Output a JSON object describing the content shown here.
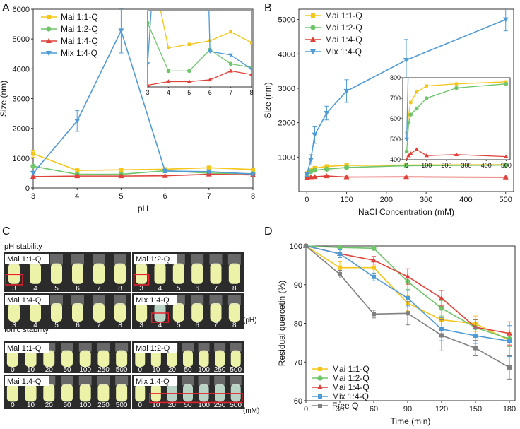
{
  "colors": {
    "mai11": "#f5c518",
    "mai12": "#6fc56a",
    "mai14": "#e0413a",
    "mix14": "#4f9bd6",
    "freeq": "#808080",
    "axis": "#333333",
    "photo_bg": "#2b2b2b",
    "tube_fill": "#ecf2a8",
    "tube_turbid": "#b9d4c4",
    "highlight": "#e8232f"
  },
  "chart_data": [
    {
      "panel": "A",
      "type": "line",
      "title": "",
      "xlabel": "pH",
      "ylabel": "Size (nm)",
      "x": [
        3,
        4,
        5,
        6,
        7,
        8
      ],
      "xlim": [
        3,
        8
      ],
      "ylim": [
        0,
        6000
      ],
      "xticks": [
        "3",
        "4",
        "5",
        "6",
        "7",
        "8"
      ],
      "yticks": [
        "0",
        "1000",
        "2000",
        "3000",
        "4000",
        "5000",
        "6000"
      ],
      "legend_position": "top-left",
      "series": [
        {
          "name": "Mai 1:1-Q",
          "key": "mai11",
          "marker": "square",
          "values": [
            1150,
            590,
            610,
            630,
            680,
            620
          ],
          "errors": [
            120,
            40,
            40,
            40,
            40,
            40
          ]
        },
        {
          "name": "Mai 1:2-Q",
          "key": "mai12",
          "marker": "circle",
          "values": [
            730,
            460,
            460,
            580,
            500,
            480
          ],
          "errors": [
            40,
            30,
            30,
            30,
            30,
            30
          ]
        },
        {
          "name": "Mai 1:4-Q",
          "key": "mai14",
          "marker": "triangle-up",
          "values": [
            380,
            400,
            400,
            410,
            460,
            440
          ],
          "errors": [
            20,
            20,
            20,
            20,
            20,
            20
          ]
        },
        {
          "name": "Mix 1:4-Q",
          "key": "mix14",
          "marker": "triangle-down",
          "values": [
            500,
            2250,
            5280,
            570,
            550,
            470
          ],
          "errors": [
            60,
            350,
            750,
            60,
            40,
            40
          ]
        }
      ],
      "inset": {
        "xlim": [
          3,
          8
        ],
        "ylim": [
          370,
          800
        ],
        "xticks": [
          "3",
          "4",
          "5",
          "6",
          "7",
          "8"
        ]
      }
    },
    {
      "panel": "B",
      "type": "line",
      "title": "",
      "xlabel": "NaCl Concentration (mM)",
      "ylabel": "Size (nm)",
      "x": [
        0,
        10,
        20,
        50,
        100,
        250,
        500
      ],
      "xlim": [
        -20,
        520
      ],
      "ylim": [
        0,
        5300
      ],
      "xticks": [
        "0",
        "100",
        "200",
        "300",
        "400",
        "500"
      ],
      "yticks": [
        "1000",
        "2000",
        "3000",
        "4000",
        "5000"
      ],
      "legend_position": "top-left",
      "series": [
        {
          "name": "Mai 1:1-Q",
          "key": "mai11",
          "marker": "square",
          "values": [
            530,
            620,
            680,
            730,
            760,
            770,
            780
          ],
          "errors": [
            20,
            20,
            20,
            20,
            20,
            20,
            20
          ]
        },
        {
          "name": "Mai 1:2-Q",
          "key": "mai12",
          "marker": "circle",
          "values": [
            440,
            580,
            620,
            650,
            700,
            750,
            770
          ],
          "errors": [
            20,
            20,
            20,
            20,
            20,
            20,
            20
          ]
        },
        {
          "name": "Mai 1:4-Q",
          "key": "mai14",
          "marker": "triangle-up",
          "values": [
            400,
            420,
            430,
            450,
            420,
            425,
            415
          ],
          "errors": [
            10,
            10,
            10,
            10,
            10,
            10,
            10
          ]
        },
        {
          "name": "Mix 1:4-Q",
          "key": "mix14",
          "marker": "triangle-down",
          "values": [
            500,
            920,
            1650,
            2280,
            2920,
            3820,
            5000
          ],
          "errors": [
            60,
            150,
            250,
            200,
            330,
            600,
            330
          ]
        }
      ],
      "inset": {
        "xlim": [
          -20,
          520
        ],
        "ylim": [
          400,
          800
        ],
        "xticks": [
          "0",
          "100",
          "200",
          "300",
          "400",
          "500"
        ],
        "yticks": [
          "400",
          "500",
          "600",
          "700",
          "800"
        ]
      }
    },
    {
      "panel": "D",
      "type": "line",
      "title": "",
      "xlabel": "Time (min)",
      "ylabel": "Residual quercetin (%)",
      "x": [
        0,
        30,
        60,
        90,
        120,
        150,
        180
      ],
      "xlim": [
        0,
        185
      ],
      "ylim": [
        60,
        100
      ],
      "xticks": [
        "0",
        "30",
        "60",
        "90",
        "120",
        "150",
        "180"
      ],
      "yticks": [
        "60",
        "70",
        "80",
        "90",
        "100"
      ],
      "legend_position": "bottom-left",
      "series": [
        {
          "name": "Mai 1:1-Q",
          "key": "mai11",
          "marker": "square",
          "values": [
            100,
            94.4,
            94.4,
            85.2,
            80.9,
            79.9,
            75.6
          ],
          "errors": [
            0,
            1.5,
            1.5,
            2,
            2,
            2,
            2
          ]
        },
        {
          "name": "Mai 1:2-Q",
          "key": "mai12",
          "marker": "circle",
          "values": [
            100,
            99.6,
            99.4,
            90.8,
            83.9,
            78.9,
            76.0
          ],
          "errors": [
            0,
            0.5,
            0.5,
            2,
            2,
            2,
            2
          ]
        },
        {
          "name": "Mai 1:4-Q",
          "key": "mai14",
          "marker": "triangle-up",
          "values": [
            100,
            98.0,
            96.3,
            92.1,
            86.5,
            79.0,
            77.4
          ],
          "errors": [
            0,
            1,
            1,
            2,
            2,
            2,
            3
          ]
        },
        {
          "name": "Mix 1:4-Q",
          "key": "mix14",
          "marker": "square",
          "values": [
            100,
            98.0,
            92.0,
            86.5,
            78.5,
            76.8,
            75.4
          ],
          "errors": [
            0,
            1,
            1,
            2,
            3,
            2,
            4
          ]
        },
        {
          "name": "Free Q",
          "key": "freeq",
          "marker": "square",
          "values": [
            100,
            92.7,
            82.4,
            82.6,
            76.9,
            73.6,
            68.6
          ],
          "errors": [
            0,
            1,
            1,
            3,
            4,
            2,
            3
          ]
        }
      ]
    }
  ],
  "panels": {
    "A": {
      "label": "A"
    },
    "B": {
      "label": "B"
    },
    "C": {
      "label": "C",
      "ph_title": "pH stability",
      "ionic_title": "Ionic stability",
      "ph_unit": "(pH)",
      "ionic_unit": "(mM)",
      "ph_ticks": [
        "3",
        "4",
        "5",
        "6",
        "7",
        "8"
      ],
      "ionic_ticks": [
        "0",
        "10",
        "20",
        "50",
        "100",
        "250",
        "500"
      ],
      "ph_photos": [
        "Mai 1:1-Q",
        "Mai 1:2-Q",
        "Mai 1:4-Q",
        "Mix 1:4-Q"
      ],
      "ionic_photos": [
        "Mai 1:1-Q",
        "Mai 1:2-Q",
        "Mai 1:4-Q",
        "Mix 1:4-Q"
      ]
    },
    "D": {
      "label": "D"
    }
  }
}
